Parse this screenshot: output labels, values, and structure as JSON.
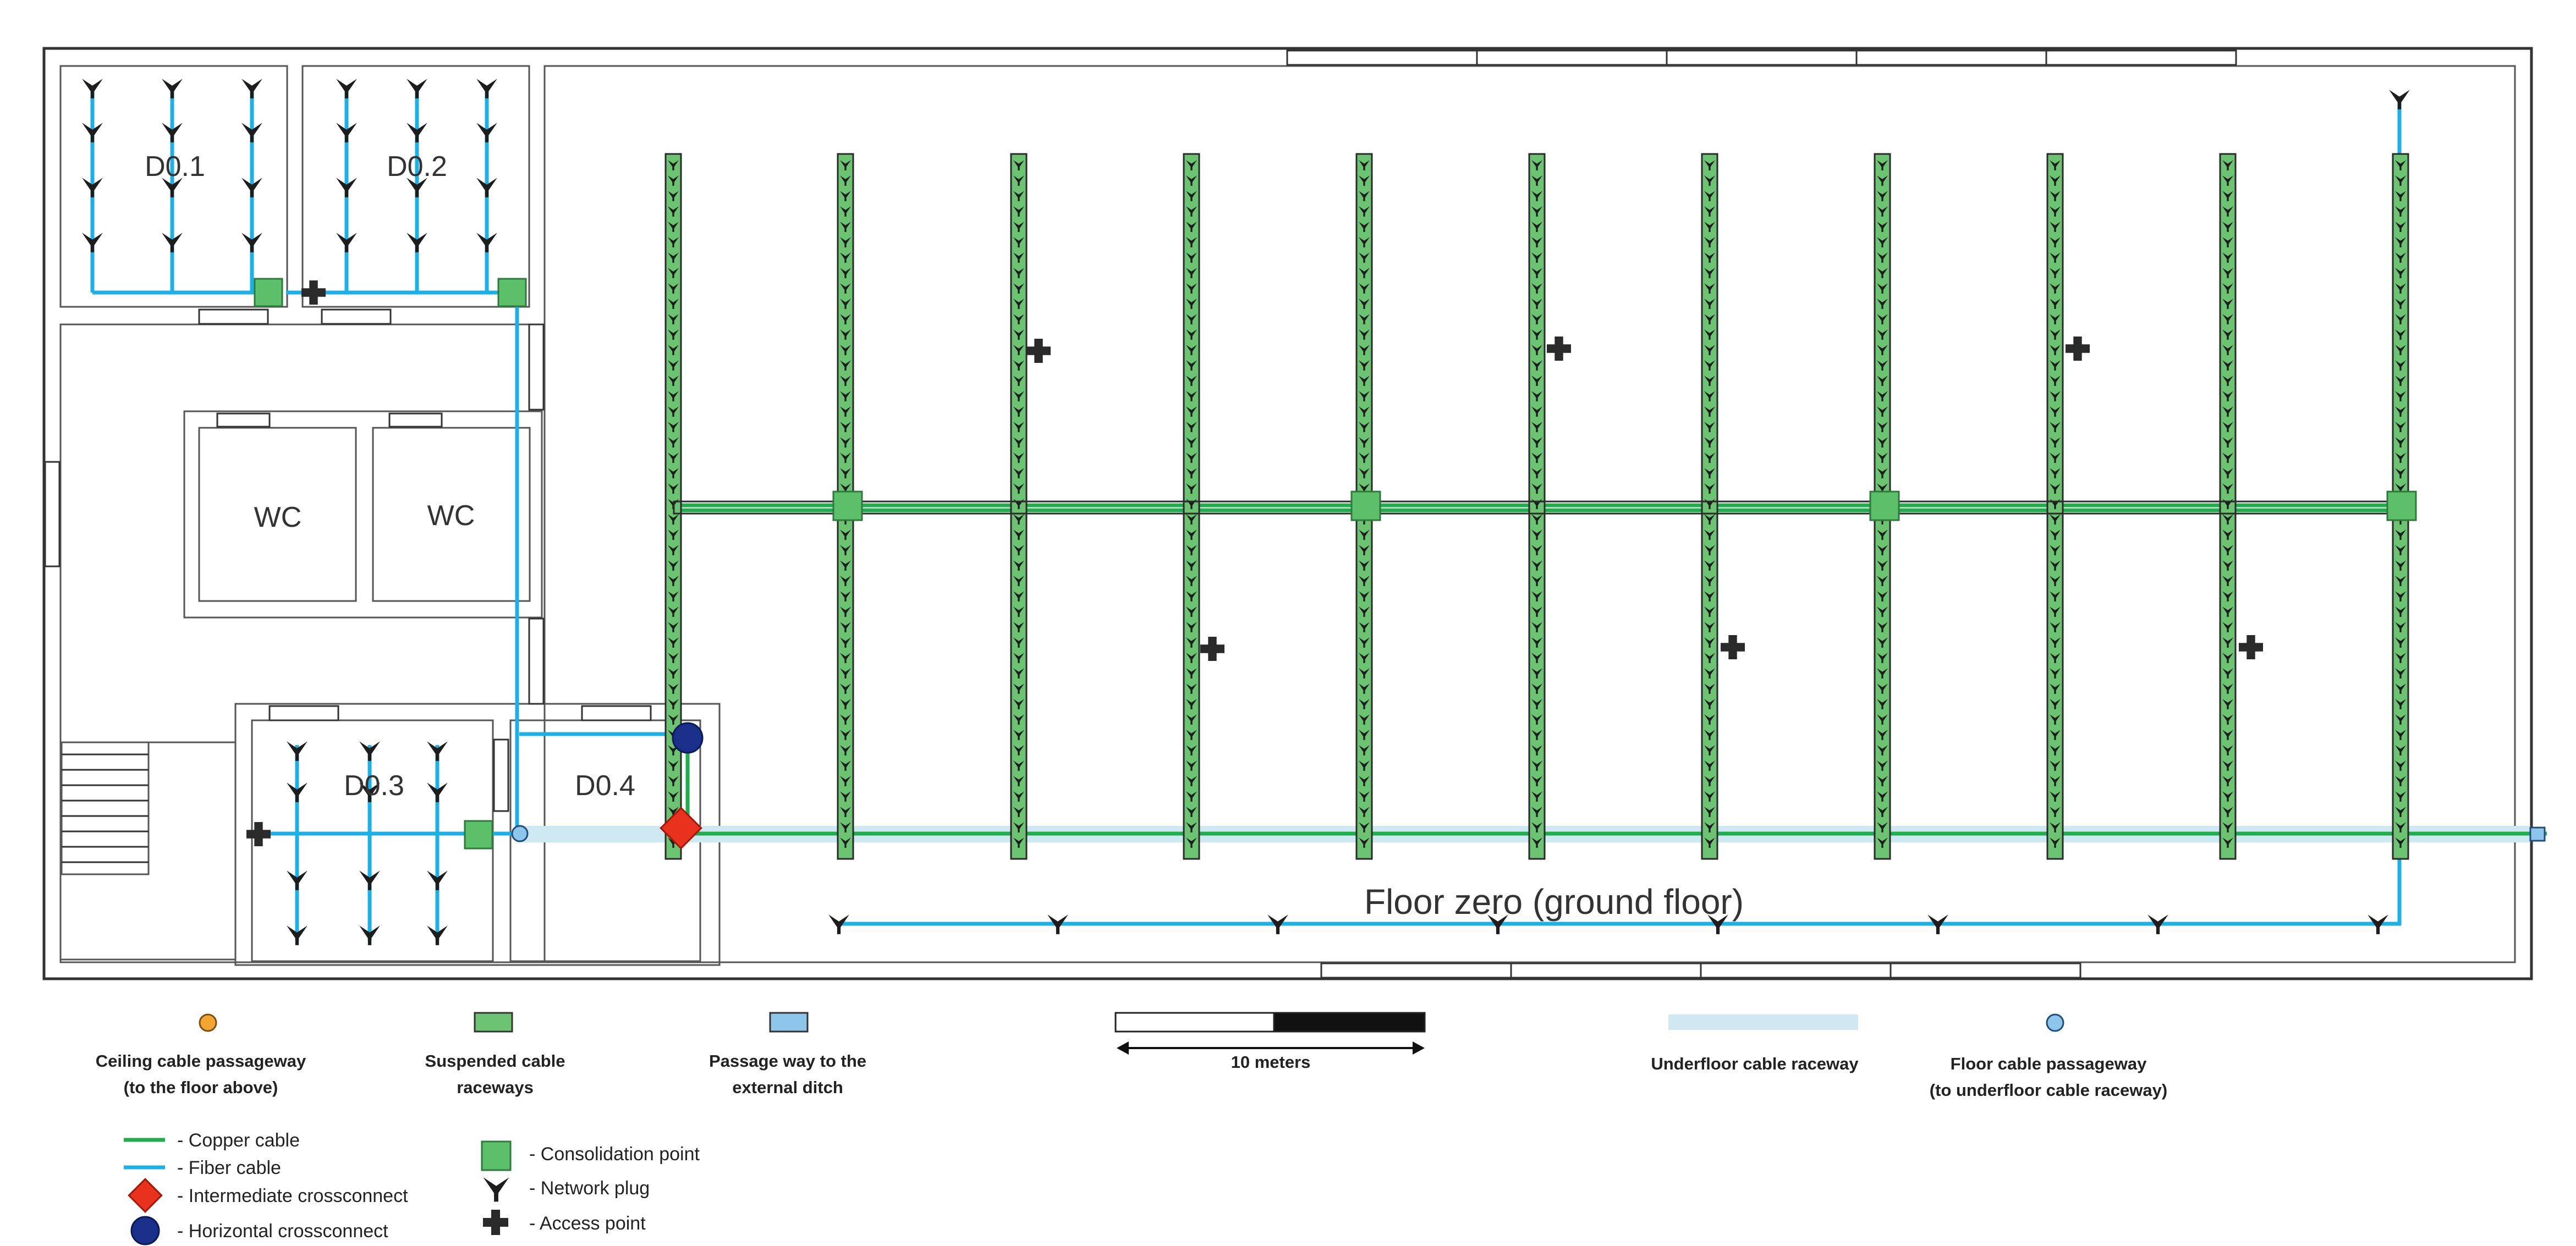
{
  "rooms": {
    "d01": "D0.1",
    "d02": "D0.2",
    "d03": "D0.3",
    "d04": "D0.4",
    "wc1": "WC",
    "wc2": "WC"
  },
  "floor_title": "Floor zero (ground floor)",
  "legend_top": {
    "ceiling": [
      "Ceiling cable passageway",
      "(to the floor above)"
    ],
    "suspended": [
      "Suspended cable",
      "raceways"
    ],
    "passage": [
      "Passage way to the",
      "external ditch"
    ],
    "scale": "10 meters",
    "underfloor": "Underfloor cable raceway",
    "floor_passage": [
      "Floor cable passageway",
      "(to underfloor cable raceway)"
    ]
  },
  "legend_bottom": {
    "copper": "- Copper cable",
    "fiber": "- Fiber cable",
    "ic": "- Intermediate crossconnect",
    "hc": "- Horizontal crossconnect",
    "cp": "- Consolidation point",
    "plug": "- Network plug",
    "ap": "- Access point"
  },
  "colors": {
    "copper": "#1fae4b",
    "fiber": "#1bb0e6",
    "raceway": "#6cc472",
    "underfloor": "#cfe9f3",
    "intermediate_crossconnect": "#e8321e",
    "horizontal_crossconnect": "#1a2f8a",
    "ceiling_passageway": "#f2a531",
    "passage_external": "#8ec5ea"
  }
}
